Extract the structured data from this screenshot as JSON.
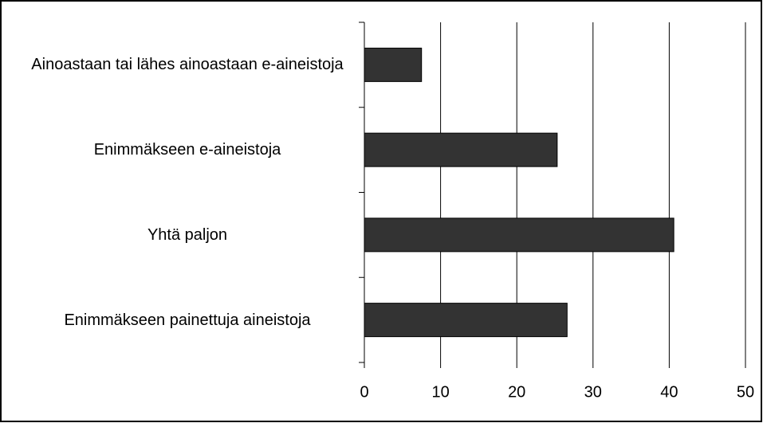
{
  "chart_data": {
    "type": "bar",
    "orientation": "horizontal",
    "categories": [
      "Ainoastaan tai lähes ainoastaan e-aineistoja",
      "Enimmäkseen e-aineistoja",
      "Yhtä paljon",
      "Enimmäkseen painettuja aineistoja"
    ],
    "values": [
      7.5,
      25.3,
      40.6,
      26.6
    ],
    "color": "#333333",
    "xlim": [
      0,
      50
    ],
    "xticks": [
      0,
      10,
      20,
      30,
      40,
      50
    ],
    "grid": true
  }
}
